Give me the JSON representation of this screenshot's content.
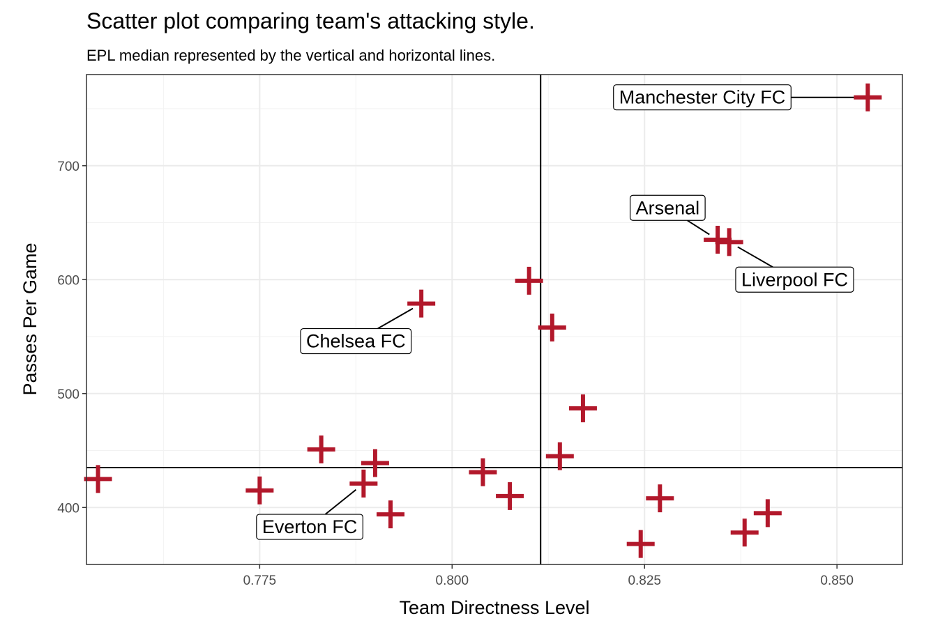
{
  "chart_data": {
    "type": "scatter",
    "title": "Scatter plot comparing team's attacking style.",
    "subtitle": "EPL median represented by the vertical and horizontal lines.",
    "xlabel": "Team Directness Level",
    "ylabel": "Passes Per Game",
    "xlim": [
      0.7525,
      0.8585
    ],
    "ylim": [
      350,
      780
    ],
    "x_ticks": [
      0.775,
      0.8,
      0.825,
      0.85
    ],
    "x_tick_labels": [
      "0.775",
      "0.800",
      "0.825",
      "0.850"
    ],
    "y_ticks": [
      400,
      500,
      600,
      700
    ],
    "y_tick_labels": [
      "400",
      "500",
      "600",
      "700"
    ],
    "grid": true,
    "median_x": 0.8115,
    "median_y": 435,
    "marker": "plus",
    "color": "#b2182b",
    "points": [
      {
        "x": 0.754,
        "y": 425
      },
      {
        "x": 0.775,
        "y": 415
      },
      {
        "x": 0.783,
        "y": 451
      },
      {
        "x": 0.7885,
        "y": 421
      },
      {
        "x": 0.79,
        "y": 439
      },
      {
        "x": 0.792,
        "y": 394
      },
      {
        "x": 0.796,
        "y": 579
      },
      {
        "x": 0.804,
        "y": 431
      },
      {
        "x": 0.8075,
        "y": 410
      },
      {
        "x": 0.81,
        "y": 599
      },
      {
        "x": 0.813,
        "y": 558
      },
      {
        "x": 0.814,
        "y": 445
      },
      {
        "x": 0.817,
        "y": 487
      },
      {
        "x": 0.8245,
        "y": 368
      },
      {
        "x": 0.827,
        "y": 408
      },
      {
        "x": 0.8345,
        "y": 635
      },
      {
        "x": 0.836,
        "y": 633
      },
      {
        "x": 0.838,
        "y": 378
      },
      {
        "x": 0.841,
        "y": 395
      },
      {
        "x": 0.854,
        "y": 760
      }
    ],
    "annotations": [
      {
        "text": "Manchester City FC",
        "x": 0.854,
        "y": 760,
        "label_x": 0.8325,
        "label_y": 760
      },
      {
        "text": "Arsenal",
        "x": 0.8345,
        "y": 635,
        "label_x": 0.828,
        "label_y": 663
      },
      {
        "text": "Liverpool FC",
        "x": 0.836,
        "y": 633,
        "label_x": 0.8445,
        "label_y": 600
      },
      {
        "text": "Chelsea FC",
        "x": 0.796,
        "y": 579,
        "label_x": 0.7875,
        "label_y": 546
      },
      {
        "text": "Everton FC",
        "x": 0.7885,
        "y": 421,
        "label_x": 0.7815,
        "label_y": 383
      }
    ]
  }
}
